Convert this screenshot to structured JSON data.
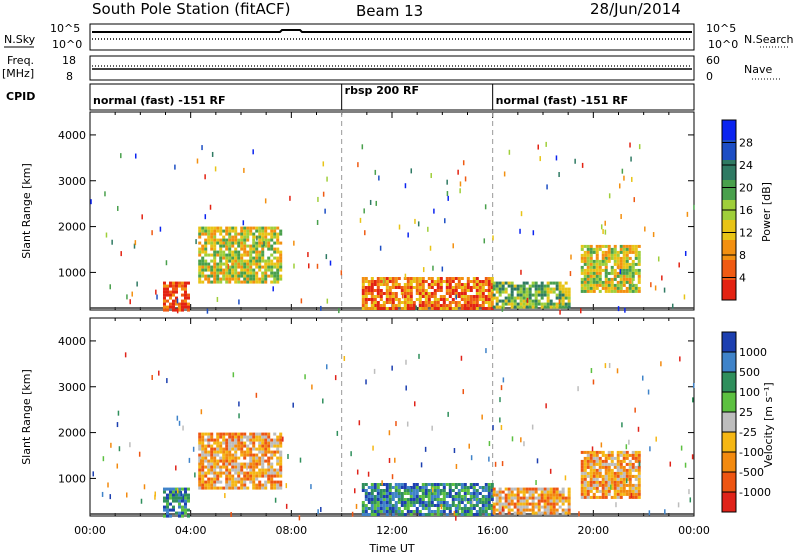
{
  "header": {
    "title": "South Pole Station (fitACF)",
    "beam": "Beam 13",
    "date": "28/Jun/2014"
  },
  "params": {
    "nsky_label": "N.Sky",
    "nsky_ticks": [
      "10^5",
      "10^0"
    ],
    "nsearch_label": "N.Search",
    "nsearch_ticks": [
      "10^5",
      "10^0"
    ],
    "freq_label": "Freq.",
    "freq_unit": "[MHz]",
    "freq_ticks": [
      "18",
      "8"
    ],
    "nave_label": "Nave",
    "nave_ticks": [
      "60",
      "0"
    ],
    "cpid_label": "CPID",
    "cpid_segments": [
      {
        "label": "normal (fast) -151 RF",
        "start_h": 0,
        "end_h": 10
      },
      {
        "label": "rbsp 200 RF",
        "start_h": 10,
        "end_h": 16
      },
      {
        "label": "normal (fast) -151 RF",
        "start_h": 16,
        "end_h": 24
      }
    ]
  },
  "chart_data": [
    {
      "type": "heatmap",
      "name": "power",
      "ylabel": "Slant Range [km]",
      "xlabel": "",
      "xlim": [
        0,
        24
      ],
      "ylim": [
        180,
        4500
      ],
      "yticks": [
        "1000",
        "2000",
        "3000",
        "4000"
      ],
      "colorbar_label": "Power [dB]",
      "colorbar_ticks": [
        "4",
        "8",
        "12",
        "16",
        "20",
        "24",
        "28"
      ],
      "colorbar_colors": [
        "#0b24f0",
        "#1c4ec4",
        "#2f7a63",
        "#49a04c",
        "#9fcf3a",
        "#e8c416",
        "#f39010",
        "#ef5a12",
        "#e32212"
      ],
      "regions": [
        {
          "t0": 2.9,
          "t1": 3.9,
          "r0": 200,
          "r1": 800,
          "level": 8
        },
        {
          "t0": 4.3,
          "t1": 7.6,
          "r0": 800,
          "r1": 2000,
          "level": 5
        },
        {
          "t0": 10.8,
          "t1": 16.0,
          "r0": 200,
          "r1": 900,
          "level": 7
        },
        {
          "t0": 16.0,
          "t1": 19.0,
          "r0": 250,
          "r1": 800,
          "level": 4
        },
        {
          "t0": 19.5,
          "t1": 21.8,
          "r0": 600,
          "r1": 1600,
          "level": 5
        }
      ]
    },
    {
      "type": "heatmap",
      "name": "velocity",
      "ylabel": "Slant Range [km]",
      "xlabel": "Time UT",
      "xlim": [
        0,
        24
      ],
      "ylim": [
        180,
        4500
      ],
      "xticks": [
        "00:00",
        "04:00",
        "08:00",
        "12:00",
        "16:00",
        "20:00",
        "00:00"
      ],
      "yticks": [
        "1000",
        "2000",
        "3000",
        "4000"
      ],
      "colorbar_label": "Velocity [m s⁻¹]",
      "colorbar_ticks": [
        "1000",
        "500",
        "100",
        "25",
        "-25",
        "-100",
        "-500",
        "-1000"
      ],
      "colorbar_colors": [
        "#1c3fb0",
        "#3f83c9",
        "#2f8f5c",
        "#5cc040",
        "#bdbdbd",
        "#f5b714",
        "#f38a0f",
        "#ee5512",
        "#e0231a"
      ],
      "regions": [
        {
          "t0": 2.9,
          "t1": 3.9,
          "r0": 200,
          "r1": 800,
          "level": 2
        },
        {
          "t0": 4.3,
          "t1": 7.6,
          "r0": 800,
          "r1": 2000,
          "level": 6
        },
        {
          "t0": 10.8,
          "t1": 16.0,
          "r0": 200,
          "r1": 900,
          "level": 2
        },
        {
          "t0": 16.0,
          "t1": 19.0,
          "r0": 250,
          "r1": 800,
          "level": 6
        },
        {
          "t0": 19.5,
          "t1": 21.8,
          "r0": 600,
          "r1": 1600,
          "level": 6
        }
      ]
    }
  ]
}
